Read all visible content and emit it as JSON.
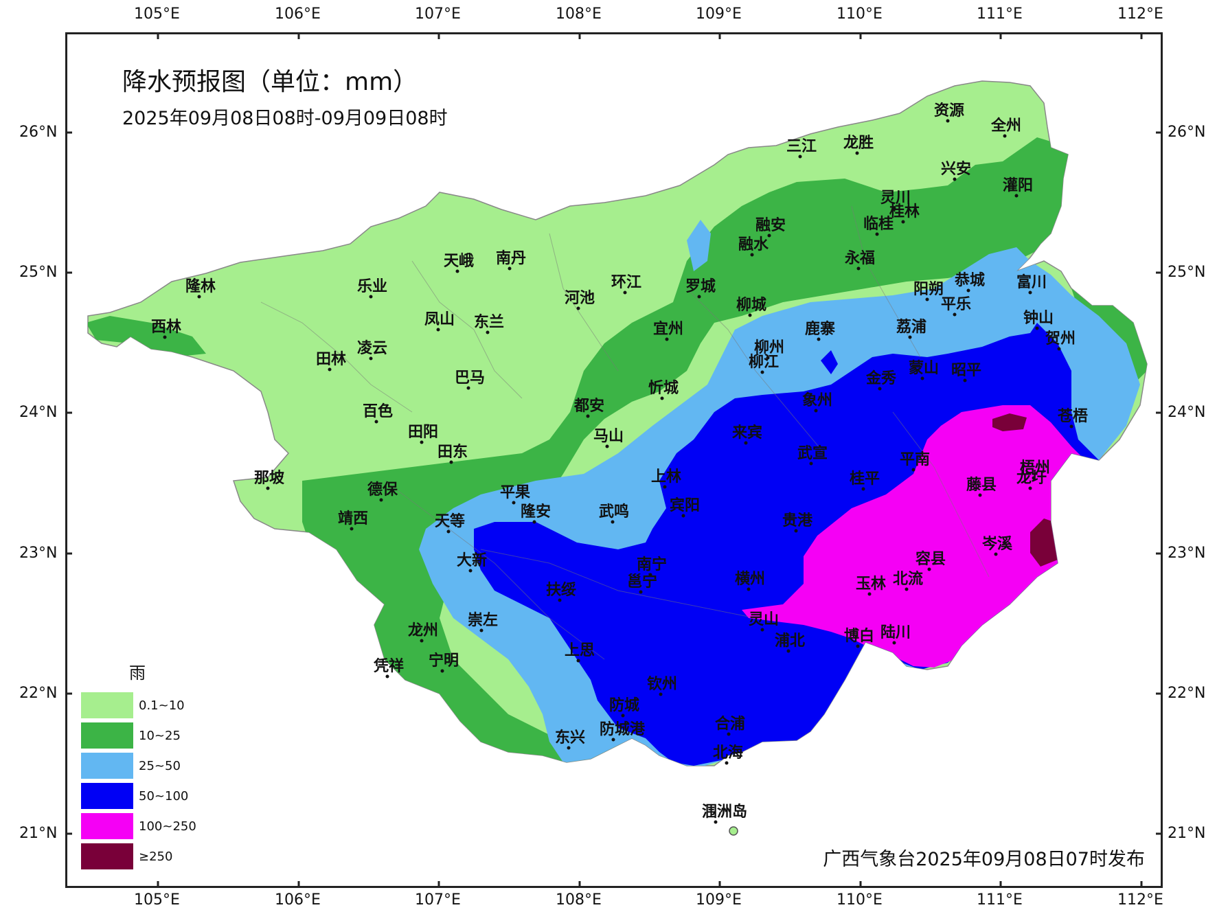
{
  "title": "降水预报图（单位：mm）",
  "subtitle": "2025年09月08日08时-09月09日08时",
  "footer": "广西气象台2025年09月08日07时发布",
  "axes": {
    "lon_labels": [
      "105°E",
      "106°E",
      "107°E",
      "108°E",
      "109°E",
      "110°E",
      "111°E",
      "112°E"
    ],
    "lat_labels": [
      "26°N",
      "25°N",
      "24°N",
      "23°N",
      "22°N",
      "21°N"
    ]
  },
  "legend": {
    "heading": "雨",
    "items": [
      {
        "label": "0.1~10",
        "color": "#a6ee8e"
      },
      {
        "label": "10~25",
        "color": "#3cb446"
      },
      {
        "label": "25~50",
        "color": "#62b7f2"
      },
      {
        "label": "50~100",
        "color": "#0000f5"
      },
      {
        "label": "100~250",
        "color": "#f500f5"
      },
      {
        "label": "≥250",
        "color": "#790039"
      }
    ]
  },
  "cities": [
    "资源",
    "全州",
    "三江",
    "龙胜",
    "兴安",
    "灵川",
    "灌阳",
    "桂林",
    "融安",
    "临桂",
    "融水",
    "永福",
    "乐业",
    "天峨",
    "南丹",
    "隆林",
    "环江",
    "罗城",
    "河池",
    "阳朔",
    "恭城",
    "富川",
    "平乐",
    "西林",
    "凤山",
    "东兰",
    "柳城",
    "鹿寨",
    "荔浦",
    "钟山",
    "贺州",
    "宜州",
    "柳州",
    "柳江",
    "田林",
    "凌云",
    "金秀",
    "蒙山",
    "昭平",
    "巴马",
    "忻城",
    "都安",
    "象州",
    "苍梧",
    "百色",
    "马山",
    "来宾",
    "田阳",
    "田东",
    "武宣",
    "平南",
    "那坡",
    "梧州",
    "德保",
    "上林",
    "桂平",
    "藤县",
    "龙圩",
    "平果",
    "宾阳",
    "靖西",
    "天等",
    "隆安",
    "武鸣",
    "贵港",
    "岑溪",
    "大新",
    "南宁",
    "邕宁",
    "容县",
    "横州",
    "扶绥",
    "玉林",
    "北流",
    "崇左",
    "灵山",
    "浦北",
    "博白",
    "陆川",
    "龙州",
    "上思",
    "凭祥",
    "宁明",
    "钦州",
    "防城",
    "合浦",
    "防城港",
    "东兴",
    "北海",
    "涠洲岛"
  ]
}
